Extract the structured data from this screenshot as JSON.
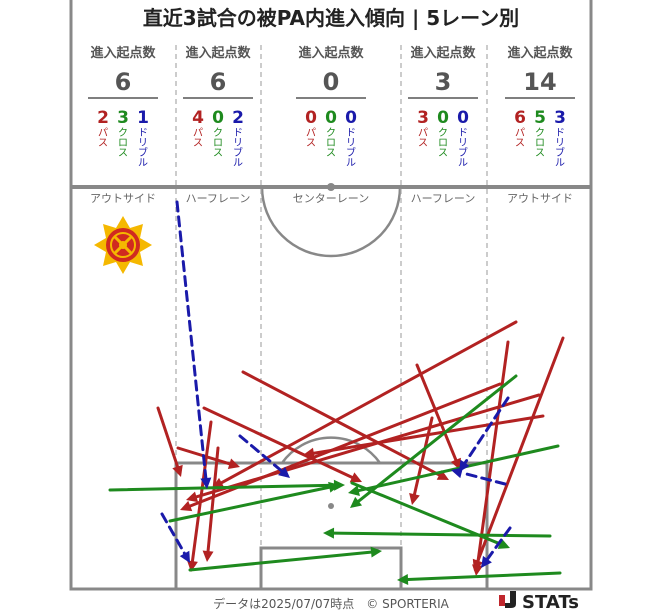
{
  "title": "直近3試合の被PA内進入傾向 | 5レーン別",
  "footer_text": "データは2025/07/07時点　© SPORTERIA",
  "brand": "STATs",
  "legend_labels": {
    "pass": "パス",
    "cross": "クロス",
    "dribble": "ドリブル"
  },
  "colors": {
    "pass": "#b22222",
    "cross": "#1e8a1e",
    "dribble": "#1a1aaa",
    "field_line": "#888888"
  },
  "chart_data": {
    "type": "flow-map",
    "metric_label": "進入起点数",
    "lanes": [
      {
        "name": "アウトサイド",
        "total": 6,
        "pass": 2,
        "cross": 3,
        "dribble": 1
      },
      {
        "name": "ハーフレーン",
        "total": 6,
        "pass": 4,
        "cross": 0,
        "dribble": 2
      },
      {
        "name": "センターレーン",
        "total": 0,
        "pass": 0,
        "cross": 0,
        "dribble": 0
      },
      {
        "name": "ハーフレーン",
        "total": 3,
        "pass": 3,
        "cross": 0,
        "dribble": 0
      },
      {
        "name": "アウトサイド",
        "total": 14,
        "pass": 6,
        "cross": 5,
        "dribble": 3
      }
    ]
  }
}
